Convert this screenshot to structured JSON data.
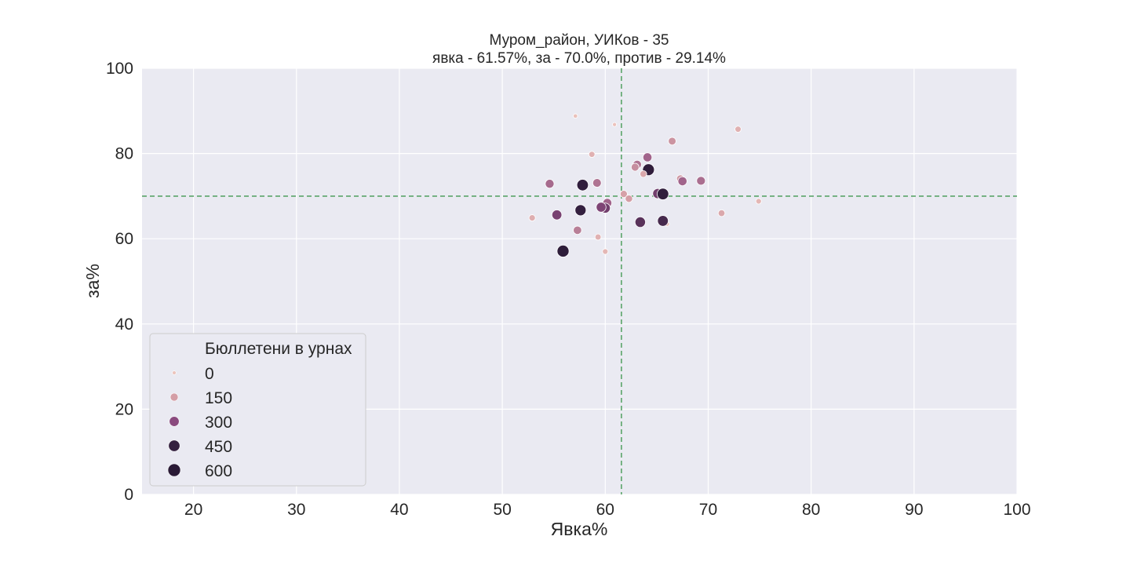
{
  "chart_data": {
    "type": "scatter",
    "title_line1": "Муром_район, УИКов - 35",
    "title_line2": "явка - 61.57%, за - 70.0%, против - 29.14%",
    "xlabel": "Явка%",
    "ylabel": "за%",
    "xlim": [
      15,
      100
    ],
    "ylim": [
      0,
      100
    ],
    "xticks": [
      20,
      30,
      40,
      50,
      60,
      70,
      80,
      90,
      100
    ],
    "yticks": [
      0,
      20,
      40,
      60,
      80,
      100
    ],
    "grid": true,
    "reference_lines": {
      "x": 61.57,
      "y": 70.0,
      "color": "#5aa469",
      "style": "dashed"
    },
    "legend": {
      "title": "Бюллетени в урнах",
      "placement": "lower-left",
      "entries": [
        {
          "label": "0",
          "size_value": 0,
          "color": "#ecc4bd"
        },
        {
          "label": "150",
          "size_value": 150,
          "color": "#d49ea6"
        },
        {
          "label": "300",
          "size_value": 300,
          "color": "#8a4a7e"
        },
        {
          "label": "450",
          "size_value": 450,
          "color": "#34203f"
        },
        {
          "label": "600",
          "size_value": 600,
          "color": "#2a1a36"
        }
      ]
    },
    "points": [
      {
        "x": 57.1,
        "y": 88.8,
        "size": 10
      },
      {
        "x": 60.9,
        "y": 86.8,
        "size": 5
      },
      {
        "x": 72.9,
        "y": 85.7,
        "size": 60
      },
      {
        "x": 66.5,
        "y": 82.9,
        "size": 140
      },
      {
        "x": 58.7,
        "y": 79.8,
        "size": 60
      },
      {
        "x": 64.1,
        "y": 79.1,
        "size": 230
      },
      {
        "x": 63.1,
        "y": 77.4,
        "size": 200
      },
      {
        "x": 62.9,
        "y": 76.8,
        "size": 150
      },
      {
        "x": 64.2,
        "y": 76.2,
        "size": 500
      },
      {
        "x": 63.7,
        "y": 75.2,
        "size": 90
      },
      {
        "x": 67.3,
        "y": 74.1,
        "size": 130
      },
      {
        "x": 67.5,
        "y": 73.5,
        "size": 230
      },
      {
        "x": 69.3,
        "y": 73.6,
        "size": 210
      },
      {
        "x": 54.6,
        "y": 72.9,
        "size": 220
      },
      {
        "x": 59.2,
        "y": 73.1,
        "size": 200
      },
      {
        "x": 57.8,
        "y": 72.6,
        "size": 470
      },
      {
        "x": 65.1,
        "y": 70.6,
        "size": 320
      },
      {
        "x": 65.6,
        "y": 70.5,
        "size": 480
      },
      {
        "x": 61.8,
        "y": 70.5,
        "size": 110
      },
      {
        "x": 62.3,
        "y": 69.4,
        "size": 120
      },
      {
        "x": 60.2,
        "y": 68.4,
        "size": 230
      },
      {
        "x": 60.0,
        "y": 67.2,
        "size": 320
      },
      {
        "x": 59.6,
        "y": 67.4,
        "size": 300
      },
      {
        "x": 57.6,
        "y": 66.7,
        "size": 420
      },
      {
        "x": 55.3,
        "y": 65.6,
        "size": 310
      },
      {
        "x": 71.3,
        "y": 66.0,
        "size": 90
      },
      {
        "x": 52.9,
        "y": 64.9,
        "size": 70
      },
      {
        "x": 66.0,
        "y": 63.5,
        "size": 20
      },
      {
        "x": 63.4,
        "y": 63.9,
        "size": 360
      },
      {
        "x": 65.6,
        "y": 64.2,
        "size": 390
      },
      {
        "x": 57.3,
        "y": 62.0,
        "size": 180
      },
      {
        "x": 59.3,
        "y": 60.4,
        "size": 60
      },
      {
        "x": 74.9,
        "y": 68.8,
        "size": 40
      },
      {
        "x": 60.0,
        "y": 57.0,
        "size": 40
      },
      {
        "x": 55.9,
        "y": 57.1,
        "size": 520
      }
    ]
  }
}
